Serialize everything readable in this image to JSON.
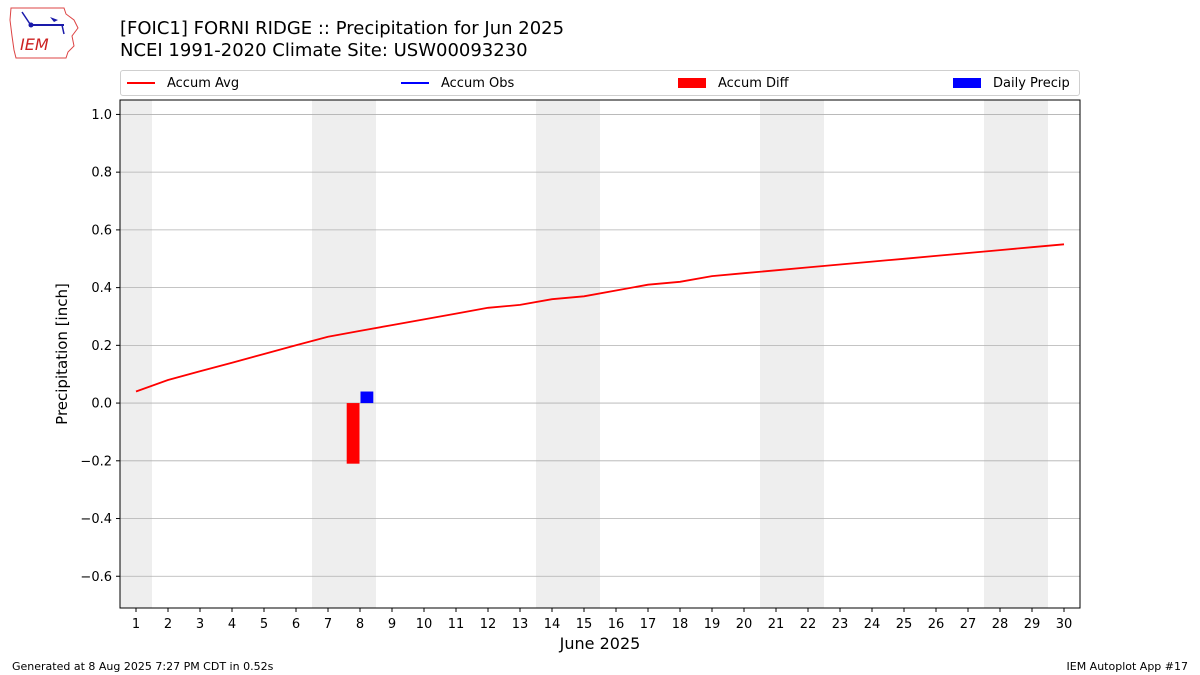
{
  "header": {
    "title_line1": "[FOIC1] FORNI RIDGE :: Precipitation for Jun 2025",
    "title_line2": "NCEI 1991-2020 Climate Site: USW00093230"
  },
  "logo": {
    "text": "IEM",
    "icon": "iem-logo-icon"
  },
  "footer": {
    "generated": "Generated at 8 Aug 2025 7:27 PM CDT in 0.52s",
    "app": "IEM Autoplot App #17"
  },
  "colors": {
    "avg": "#ff0000",
    "obs": "#0000ff",
    "diff": "#ff0000",
    "daily": "#0000ff",
    "weekend": "#eeeeee",
    "grid": "#b0b0b0"
  },
  "chart_data": {
    "type": "bar",
    "title": "[FOIC1] FORNI RIDGE :: Precipitation for Jun 2025",
    "subtitle": "NCEI 1991-2020 Climate Site: USW00093230",
    "xlabel": "June 2025",
    "ylabel": "Precipitation [inch]",
    "xlim": [
      0.5,
      30.5
    ],
    "ylim": [
      -0.71,
      1.05
    ],
    "yticks": [
      -0.6,
      -0.4,
      -0.2,
      0.0,
      0.2,
      0.4,
      0.6,
      0.8,
      1.0
    ],
    "ytick_labels": [
      "−0.6",
      "−0.4",
      "−0.2",
      "0.0",
      "0.2",
      "0.4",
      "0.6",
      "0.8",
      "1.0"
    ],
    "x": [
      1,
      2,
      3,
      4,
      5,
      6,
      7,
      8,
      9,
      10,
      11,
      12,
      13,
      14,
      15,
      16,
      17,
      18,
      19,
      20,
      21,
      22,
      23,
      24,
      25,
      26,
      27,
      28,
      29,
      30
    ],
    "grid": "horizontal",
    "weekend_days": [
      1,
      7,
      8,
      14,
      15,
      21,
      22,
      28,
      29
    ],
    "legend": [
      {
        "name": "Accum Avg",
        "kind": "line",
        "color": "#ff0000"
      },
      {
        "name": "Accum Obs",
        "kind": "line",
        "color": "#0000ff"
      },
      {
        "name": "Accum Diff",
        "kind": "bar",
        "color": "#ff0000"
      },
      {
        "name": "Daily Precip",
        "kind": "bar",
        "color": "#0000ff"
      }
    ],
    "series": [
      {
        "name": "Accum Avg",
        "kind": "line",
        "values": [
          0.04,
          0.08,
          0.11,
          0.14,
          0.17,
          0.2,
          0.23,
          0.25,
          0.27,
          0.29,
          0.31,
          0.33,
          0.34,
          0.36,
          0.37,
          0.39,
          0.41,
          0.42,
          0.44,
          0.45,
          0.46,
          0.47,
          0.48,
          0.49,
          0.5,
          0.51,
          0.52,
          0.53,
          0.54,
          0.55
        ]
      },
      {
        "name": "Accum Diff",
        "kind": "bar",
        "points": [
          {
            "x": 8,
            "value": -0.21
          }
        ]
      },
      {
        "name": "Daily Precip",
        "kind": "bar",
        "points": [
          {
            "x": 8,
            "value": 0.04
          }
        ]
      }
    ]
  }
}
